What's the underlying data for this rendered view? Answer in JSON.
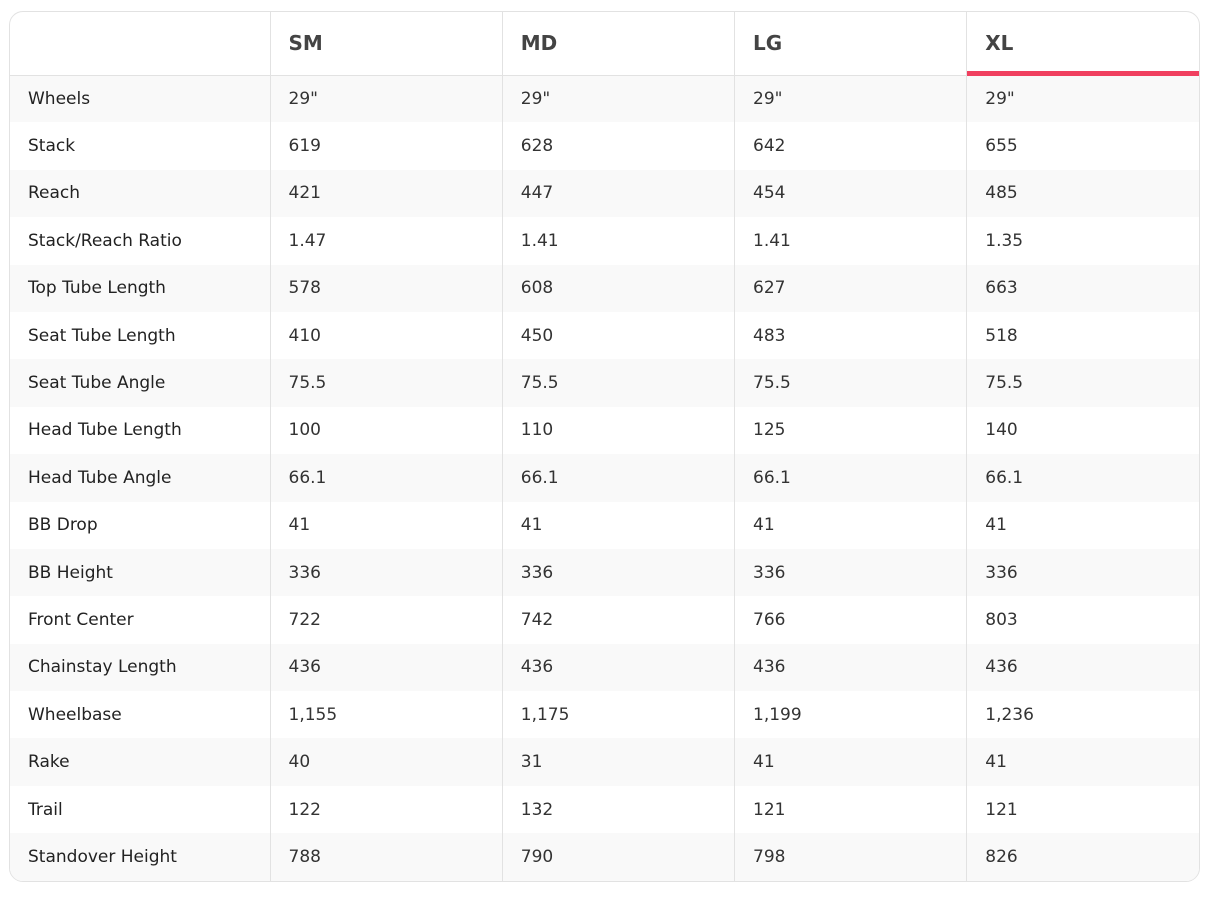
{
  "accent_color": "#f0405f",
  "columns": [
    "",
    "SM",
    "MD",
    "LG",
    "XL"
  ],
  "active_column": "XL",
  "rows": [
    {
      "label": "Wheels",
      "values": [
        "29\"",
        "29\"",
        "29\"",
        "29\""
      ]
    },
    {
      "label": "Stack",
      "values": [
        "619",
        "628",
        "642",
        "655"
      ]
    },
    {
      "label": "Reach",
      "values": [
        "421",
        "447",
        "454",
        "485"
      ]
    },
    {
      "label": "Stack/Reach Ratio",
      "values": [
        "1.47",
        "1.41",
        "1.41",
        "1.35"
      ]
    },
    {
      "label": "Top Tube Length",
      "values": [
        "578",
        "608",
        "627",
        "663"
      ]
    },
    {
      "label": "Seat Tube Length",
      "values": [
        "410",
        "450",
        "483",
        "518"
      ]
    },
    {
      "label": "Seat Tube Angle",
      "values": [
        "75.5",
        "75.5",
        "75.5",
        "75.5"
      ]
    },
    {
      "label": "Head Tube Length",
      "values": [
        "100",
        "110",
        "125",
        "140"
      ]
    },
    {
      "label": "Head Tube Angle",
      "values": [
        "66.1",
        "66.1",
        "66.1",
        "66.1"
      ]
    },
    {
      "label": "BB Drop",
      "values": [
        "41",
        "41",
        "41",
        "41"
      ]
    },
    {
      "label": "BB Height",
      "values": [
        "336",
        "336",
        "336",
        "336"
      ]
    },
    {
      "label": "Front Center",
      "values": [
        "722",
        "742",
        "766",
        "803"
      ]
    },
    {
      "label": "Chainstay Length",
      "values": [
        "436",
        "436",
        "436",
        "436"
      ]
    },
    {
      "label": "Wheelbase",
      "values": [
        "1,155",
        "1,175",
        "1,199",
        "1,236"
      ]
    },
    {
      "label": "Rake",
      "values": [
        "40",
        "31",
        "41",
        "41"
      ]
    },
    {
      "label": "Trail",
      "values": [
        "122",
        "132",
        "121",
        "121"
      ]
    },
    {
      "label": "Standover Height",
      "values": [
        "788",
        "790",
        "798",
        "826"
      ]
    }
  ]
}
